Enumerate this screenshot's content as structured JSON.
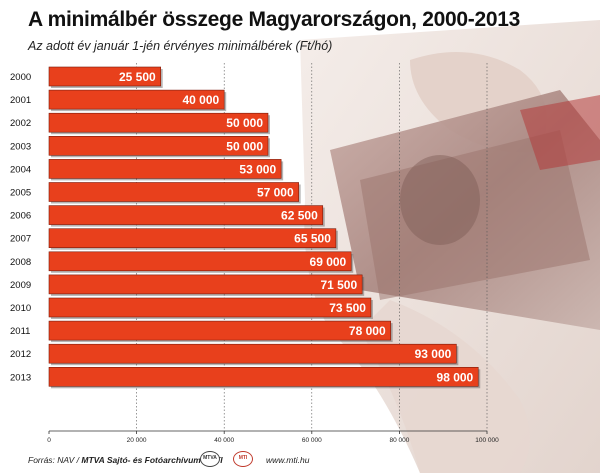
{
  "header": {
    "title": "A minimálbér összege Magyarországon, 2000-2013",
    "subtitle": "Az adott év január 1-jén érvényes minimálbérek (Ft/hó)"
  },
  "footer": {
    "source_prefix": "Forrás: NAV / ",
    "source_bold": "MTVA Sajtó- és Fotóarchívum / MTI",
    "logo_left": "MTVA",
    "logo_right": "MTI",
    "url": "www.mti.hu"
  },
  "colors": {
    "bar": "#e8401c",
    "bar_edge": "#7a1a0a",
    "bar_text": "#ffffff"
  },
  "chart_data": {
    "type": "bar",
    "orientation": "horizontal",
    "title": "A minimálbér összege Magyarországon, 2000-2013",
    "subtitle": "Az adott év január 1-jén érvényes minimálbérek (Ft/hó)",
    "categories": [
      "2000",
      "2001",
      "2002",
      "2003",
      "2004",
      "2005",
      "2006",
      "2007",
      "2008",
      "2009",
      "2010",
      "2011",
      "2012",
      "2013"
    ],
    "values": [
      25500,
      40000,
      50000,
      50000,
      53000,
      57000,
      62500,
      65500,
      69000,
      71500,
      73500,
      78000,
      93000,
      98000
    ],
    "value_labels": [
      "25 500",
      "40 000",
      "50 000",
      "50 000",
      "53 000",
      "57 000",
      "62 500",
      "65 500",
      "69 000",
      "71 500",
      "73 500",
      "78 000",
      "93 000",
      "98 000"
    ],
    "xlim": [
      0,
      100000
    ],
    "xticks": [
      0,
      20000,
      40000,
      60000,
      80000,
      100000
    ],
    "xtick_labels": [
      "0",
      "20 000",
      "40 000",
      "60 000",
      "80 000",
      "100 000"
    ],
    "grid": true,
    "legend": "none"
  }
}
